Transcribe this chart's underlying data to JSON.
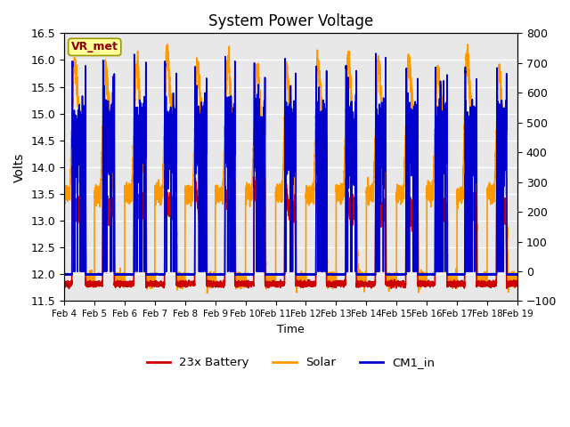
{
  "title": "System Power Voltage",
  "xlabel": "Time",
  "ylabel": "Volts",
  "ylim_left": [
    11.5,
    16.5
  ],
  "ylim_right": [
    -100,
    800
  ],
  "yticks_left": [
    11.5,
    12.0,
    12.5,
    13.0,
    13.5,
    14.0,
    14.5,
    15.0,
    15.5,
    16.0,
    16.5
  ],
  "yticks_right": [
    -100,
    0,
    100,
    200,
    300,
    400,
    500,
    600,
    700,
    800
  ],
  "xtick_labels": [
    "Feb 4",
    "Feb 5",
    "Feb 6",
    "Feb 7",
    "Feb 8",
    "Feb 9",
    "Feb 10",
    "Feb 11",
    "Feb 12",
    "Feb 13",
    "Feb 14",
    "Feb 15",
    "Feb 16",
    "Feb 17",
    "Feb 18",
    "Feb 19"
  ],
  "colors": {
    "battery": "#cc0000",
    "solar": "#ff9900",
    "cm1": "#0000cc"
  },
  "annotation_text": "VR_met",
  "annotation_fg": "#8b0000",
  "annotation_bg": "#ffff99",
  "annotation_edge": "#999900",
  "bg_color": "#e8e8e8",
  "grid_color": "#ffffff",
  "legend_labels": [
    "23x Battery",
    "Solar",
    "CM1_in"
  ],
  "line_width": 1.2,
  "n_days": 15,
  "ppd": 500
}
